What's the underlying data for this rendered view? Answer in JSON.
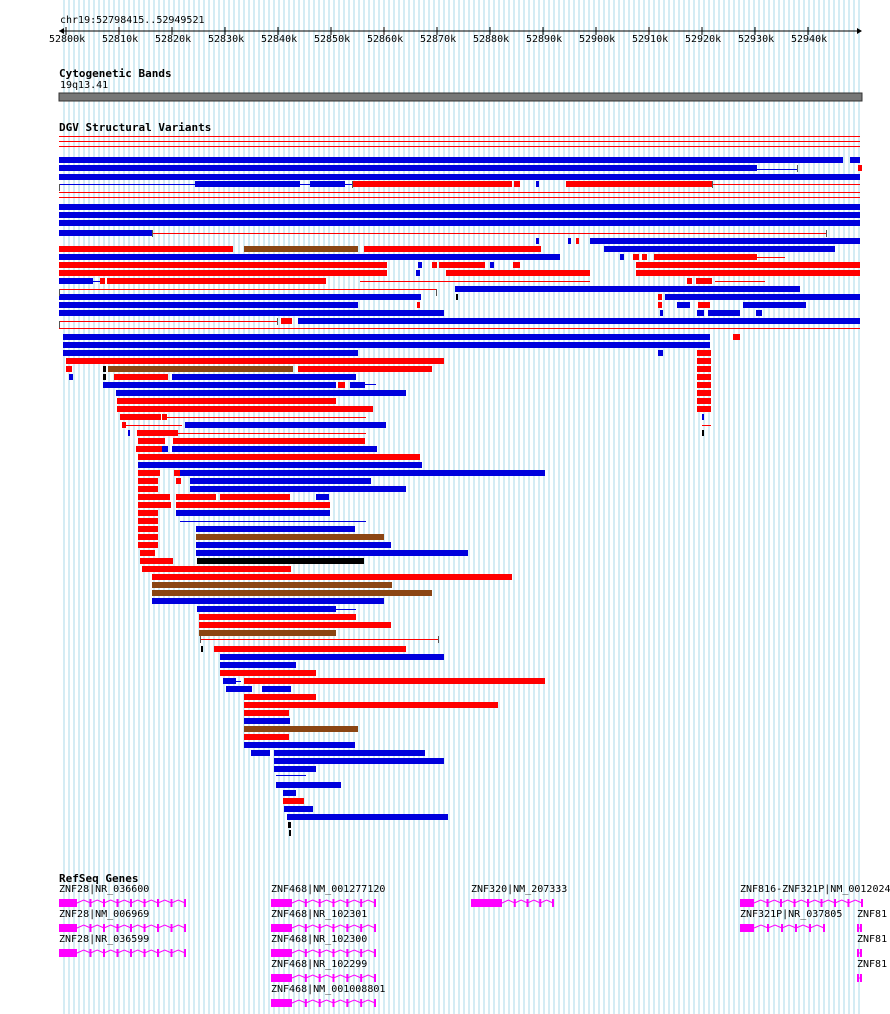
{
  "location": "chr19:52798415..52949521",
  "ruler_ticks": [
    "52800k",
    "52810k",
    "52820k",
    "52830k",
    "52840k",
    "52850k",
    "52860k",
    "52870k",
    "52880k",
    "52890k",
    "52900k",
    "52910k",
    "52920k",
    "52930k",
    "52940k"
  ],
  "tracks": {
    "cyto_title": "Cytogenetic Bands",
    "cyto_band": "19q13.41",
    "dgv_title": "DGV Structural Variants",
    "refseq_title": "RefSeq Genes"
  },
  "colors": {
    "gain": "#ff0000",
    "loss": "#0000dd",
    "both": "#8b4513",
    "other": "#000000",
    "gene": "#ff00ff",
    "grid": "#a8d8e8",
    "band": "#777777"
  },
  "genes": [
    {
      "label": "ZNF28|NR_036600",
      "row": 0,
      "start": 0,
      "end": 126,
      "block": 18,
      "strand": "+"
    },
    {
      "label": "ZNF28|NM_006969",
      "row": 1,
      "start": 0,
      "end": 126,
      "block": 18,
      "strand": "+"
    },
    {
      "label": "ZNF28|NR_036599",
      "row": 2,
      "start": 0,
      "end": 126,
      "block": 18,
      "strand": "+"
    },
    {
      "label": "ZNF468|NM_001277120",
      "row": 0,
      "start": 212,
      "end": 316,
      "block": 21,
      "strand": "+"
    },
    {
      "label": "ZNF468|NR_102301",
      "row": 1,
      "start": 212,
      "end": 316,
      "block": 21,
      "strand": "+"
    },
    {
      "label": "ZNF468|NR_102300",
      "row": 2,
      "start": 212,
      "end": 316,
      "block": 21,
      "strand": "+"
    },
    {
      "label": "ZNF468|NR_102299",
      "row": 3,
      "start": 212,
      "end": 316,
      "block": 21,
      "strand": "+"
    },
    {
      "label": "ZNF468|NM_001008801",
      "row": 4,
      "start": 212,
      "end": 316,
      "block": 21,
      "strand": "+"
    },
    {
      "label": "ZNF320|NM_207333",
      "row": 0,
      "start": 412,
      "end": 494,
      "block": 31,
      "strand": "+"
    },
    {
      "label": "ZNF816-ZNF321P|NM_0012024",
      "row": 0,
      "start": 681,
      "end": 803,
      "block": 14,
      "strand": "+"
    },
    {
      "label": "ZNF321P|NR_037805",
      "row": 1,
      "start": 681,
      "end": 765,
      "block": 14,
      "strand": "+"
    },
    {
      "label": "ZNF81",
      "row": 1,
      "start": 798,
      "end": 803,
      "block": 4,
      "strand": "-"
    },
    {
      "label": "ZNF81",
      "row": 2,
      "start": 798,
      "end": 803,
      "block": 4,
      "strand": "-"
    },
    {
      "label": "ZNF81",
      "row": 3,
      "start": 798,
      "end": 803,
      "block": 4,
      "strand": "-"
    }
  ]
}
